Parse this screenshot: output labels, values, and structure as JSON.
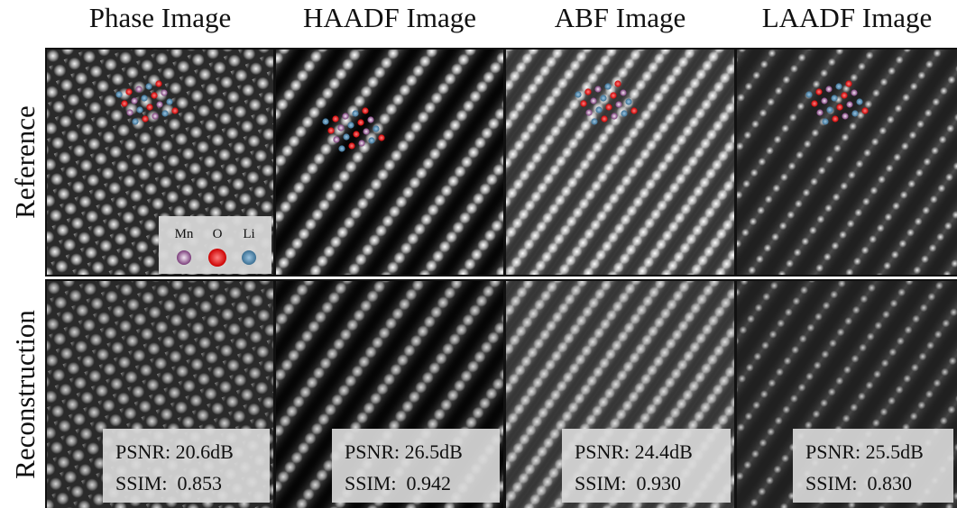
{
  "columns": [
    "Phase Image",
    "HAADF Image",
    "ABF Image",
    "LAADF Image"
  ],
  "rows": [
    "Reference",
    "Reconstruction"
  ],
  "legend": [
    "Mn",
    "O",
    "Li"
  ],
  "metrics": [
    {
      "psnr": "PSNR: 20.6dB",
      "ssim": "SSIM:  0.853"
    },
    {
      "psnr": "PSNR: 26.5dB",
      "ssim": "SSIM:  0.942"
    },
    {
      "psnr": "PSNR: 24.4dB",
      "ssim": "SSIM:  0.930"
    },
    {
      "psnr": "PSNR: 25.5dB",
      "ssim": "SSIM:  0.830"
    }
  ]
}
